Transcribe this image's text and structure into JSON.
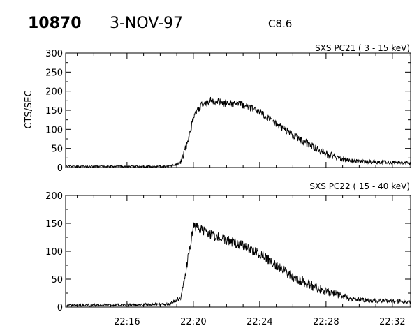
{
  "header": {
    "event_id": "10870",
    "date": "3-NOV-97",
    "flare_class": "C8.6"
  },
  "chart_data": [
    {
      "type": "line",
      "title": "SXS PC21  (  3 - 15 keV)",
      "ylabel": "CTS/SEC",
      "xlabel": "",
      "ylim": [
        0,
        300
      ],
      "yticks": [
        0,
        50,
        100,
        150,
        200,
        250,
        300
      ],
      "xlim_minutes_after_2200": [
        12.3,
        33.1
      ],
      "x_tick_labels": [],
      "noise_level": 10,
      "series": [
        {
          "x_time": [
            "22:12",
            "22:18",
            "22:19",
            "22:19.5",
            "22:20",
            "22:20.5",
            "22:21",
            "22:22",
            "22:23",
            "22:24",
            "22:25",
            "22:26",
            "22:27",
            "22:28",
            "22:29",
            "22:30",
            "22:31",
            "22:32",
            "22:33"
          ],
          "x_minutes": [
            12.3,
            18.5,
            19.2,
            19.6,
            20.0,
            20.5,
            21.0,
            22.0,
            23.0,
            24.0,
            25.0,
            26.0,
            27.0,
            28.0,
            29.2,
            29.3,
            30.5,
            32.0,
            33.1
          ],
          "values": [
            3,
            3,
            10,
            60,
            130,
            165,
            175,
            168,
            165,
            145,
            115,
            85,
            60,
            35,
            20,
            18,
            15,
            13,
            12
          ]
        }
      ]
    },
    {
      "type": "line",
      "title": "SXS PC22  ( 15 - 40 keV)",
      "ylabel": "",
      "xlabel": "",
      "ylim": [
        0,
        200
      ],
      "yticks": [
        0,
        50,
        100,
        150,
        200
      ],
      "xlim_minutes_after_2200": [
        12.3,
        33.1
      ],
      "x_tick_labels": [
        "22:16",
        "22:20",
        "22:24",
        "22:28",
        "22:32"
      ],
      "x_tick_minutes": [
        16,
        20,
        24,
        28,
        32
      ],
      "noise_level": 9,
      "series": [
        {
          "x_time": [
            "22:12",
            "22:18",
            "22:19",
            "22:19.5",
            "22:20",
            "22:20.5",
            "22:21",
            "22:22",
            "22:23",
            "22:24",
            "22:25",
            "22:26",
            "22:27",
            "22:28",
            "22:29",
            "22:30",
            "22:31",
            "22:32",
            "22:33"
          ],
          "x_minutes": [
            12.3,
            18.6,
            19.3,
            19.7,
            20.0,
            20.4,
            21.0,
            22.0,
            23.0,
            24.0,
            25.0,
            26.0,
            27.0,
            28.0,
            29.2,
            29.3,
            30.5,
            32.0,
            33.1
          ],
          "values": [
            3,
            5,
            20,
            90,
            145,
            140,
            130,
            120,
            110,
            95,
            75,
            55,
            40,
            28,
            18,
            15,
            12,
            11,
            10
          ]
        }
      ]
    }
  ]
}
